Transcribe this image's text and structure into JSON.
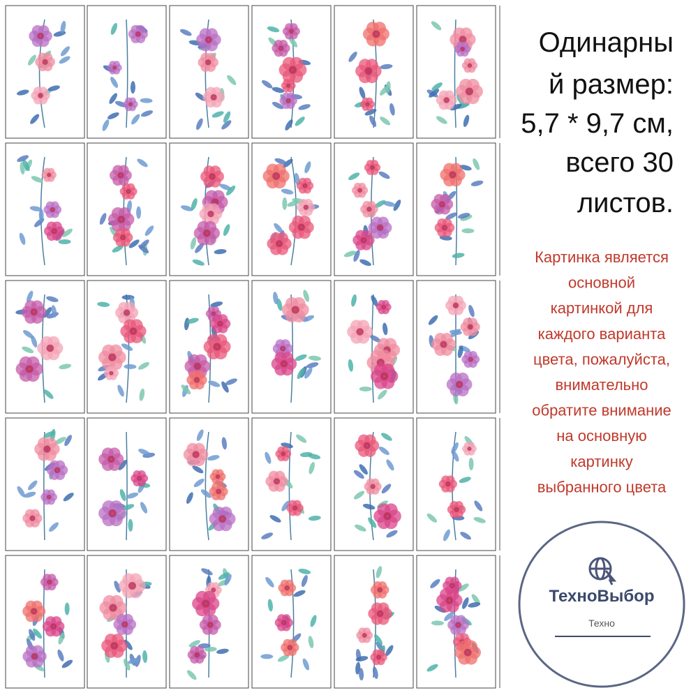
{
  "sizing": {
    "lines": [
      "Одинарны",
      "й размер:",
      "5,7 * 9,7 см,",
      "всего 30",
      "листов."
    ]
  },
  "notice": {
    "lines": [
      "Картинка является",
      "основной",
      "картинкой для",
      "каждого варианта",
      "цвета, пожалуйста,",
      "внимательно",
      "обратите внимание",
      "на основную",
      "картинку",
      "выбранного цвета"
    ]
  },
  "logo": {
    "name": "ТехноВыбор",
    "tagline": "Техно"
  }
}
